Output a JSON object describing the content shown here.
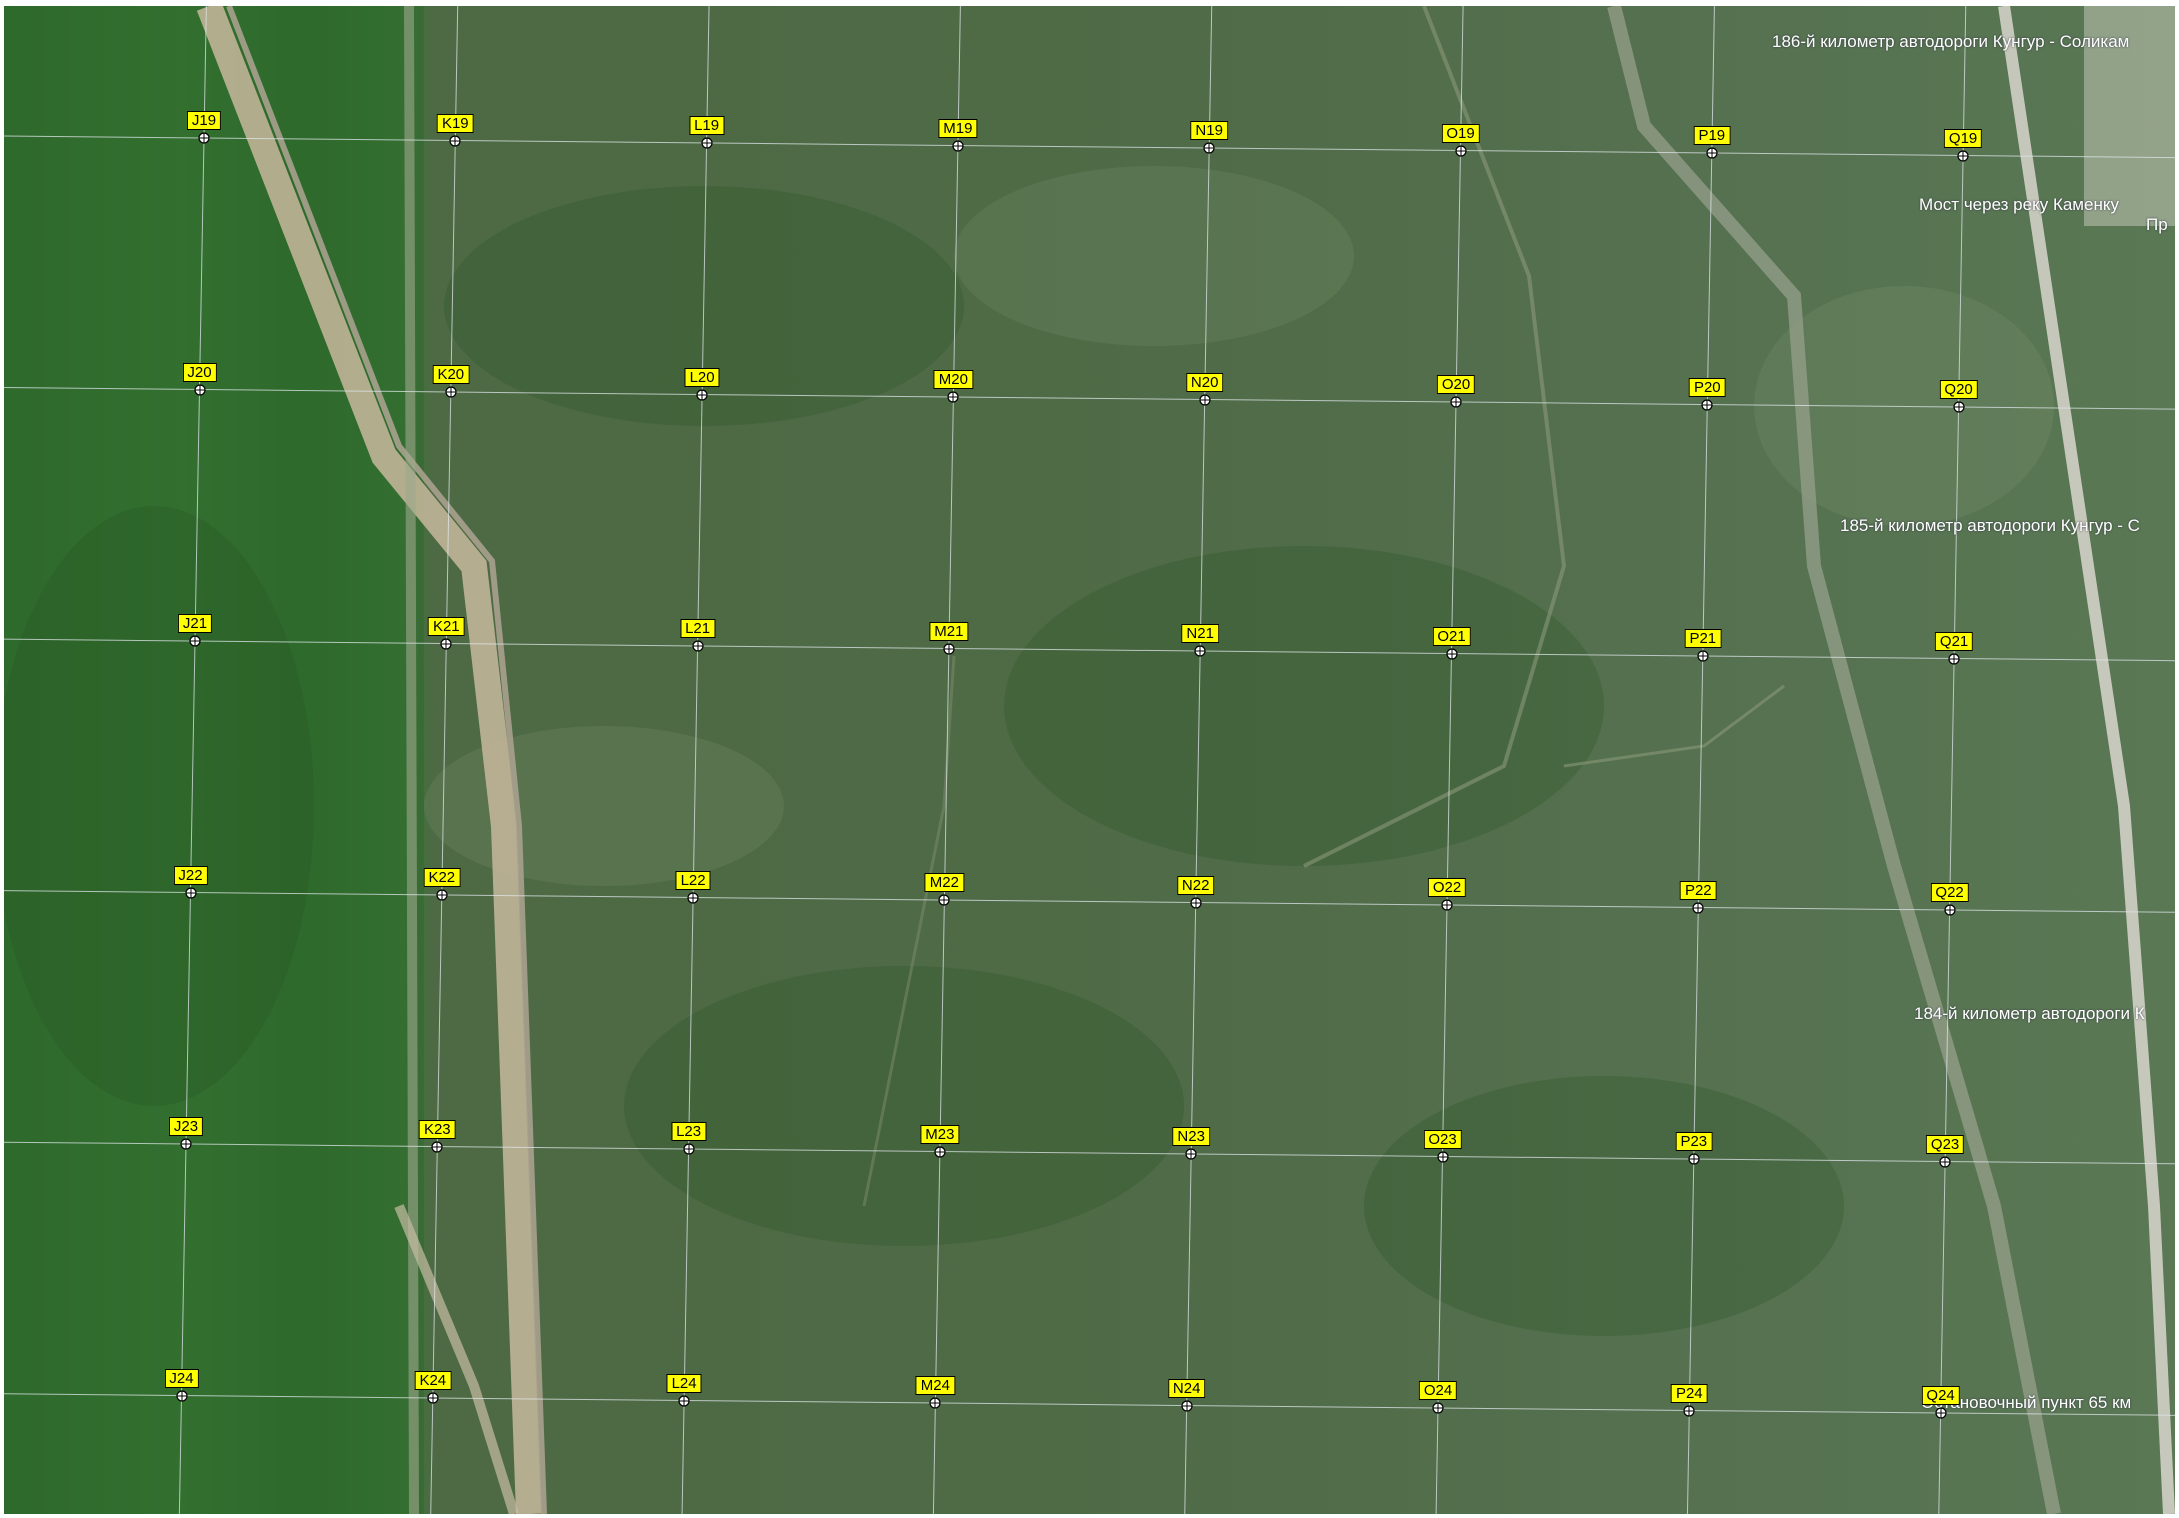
{
  "map": {
    "places": [
      {
        "id": "km186",
        "text": "186-й километр  автодороги   Кунгур -  Соликам"
      },
      {
        "id": "bridge",
        "text": "Мост через реку Каменку"
      },
      {
        "id": "pr",
        "text": "Пр"
      },
      {
        "id": "km185",
        "text": "185-й километр  автодороги   Кунгур -  С"
      },
      {
        "id": "km184",
        "text": "184-й километр  автодороги  К"
      },
      {
        "id": "stop",
        "text": "Остановочный пункт 65 км"
      }
    ],
    "grid": {
      "columns": [
        "J",
        "K",
        "L",
        "M",
        "N",
        "O",
        "P",
        "Q"
      ],
      "rows": [
        "19",
        "20",
        "21",
        "22",
        "23",
        "24"
      ],
      "cells": [
        [
          "J19",
          "K19",
          "L19",
          "M19",
          "N19",
          "O19",
          "P19",
          "Q19"
        ],
        [
          "J20",
          "K20",
          "L20",
          "M20",
          "N20",
          "O20",
          "P20",
          "Q20"
        ],
        [
          "J21",
          "K21",
          "L21",
          "M21",
          "N21",
          "O21",
          "P21",
          "Q21"
        ],
        [
          "J22",
          "K22",
          "L22",
          "M22",
          "N22",
          "O22",
          "P22",
          "Q22"
        ],
        [
          "J23",
          "K23",
          "L23",
          "M23",
          "N23",
          "O23",
          "P23",
          "Q23"
        ],
        [
          "J24",
          "K24",
          "L24",
          "M24",
          "N24",
          "O24",
          "P24",
          "Q24"
        ]
      ]
    },
    "colors": {
      "label_bg": "#ffff00",
      "grid": "#dfe6ea",
      "forest_dark": "#2f6a2c",
      "forest": "#4f6b47"
    }
  }
}
